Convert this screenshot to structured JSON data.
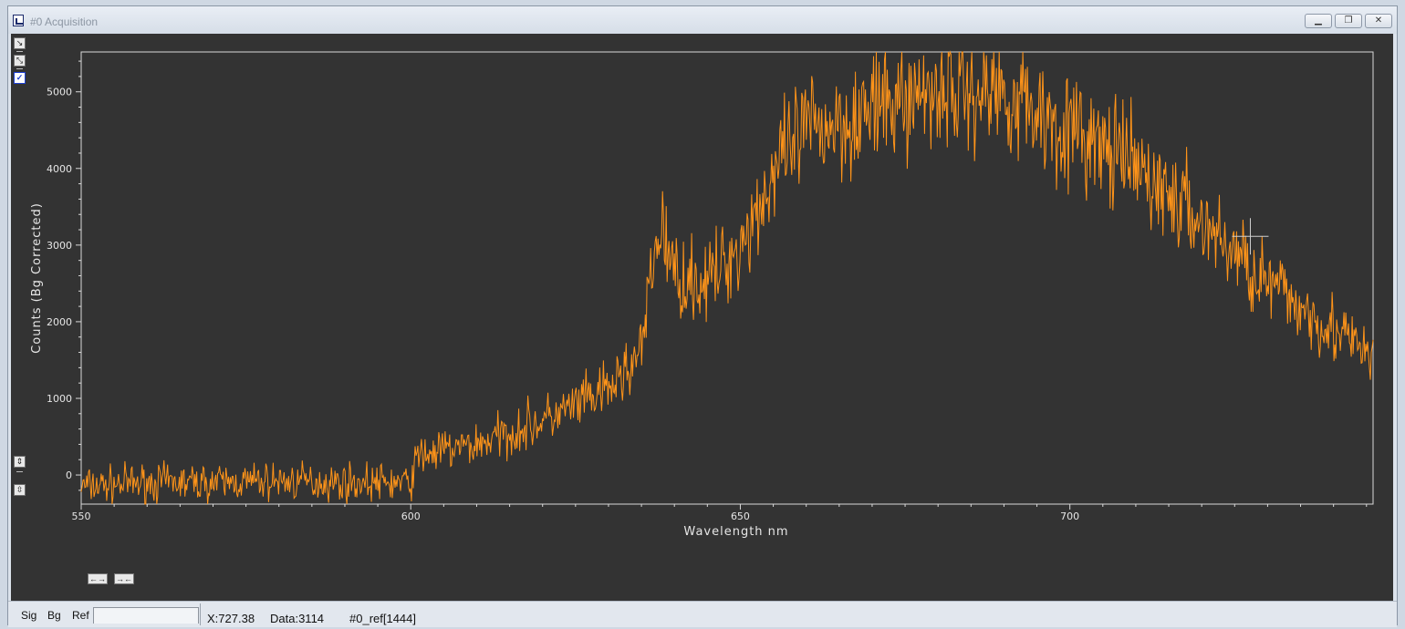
{
  "window": {
    "title": "#0  Acquisition",
    "min_icon": "minimize-icon",
    "restore_icon": "restore-icon",
    "close_icon": "close-icon"
  },
  "left_tools": {
    "icons": [
      "scale-icon",
      "zoom-fit-icon",
      "checkbox-icon"
    ],
    "checked": true
  },
  "chart_data": {
    "type": "line",
    "xlabel": "Wavelength nm",
    "ylabel": "Counts (Bg Corrected)",
    "xlim": [
      550,
      746
    ],
    "ylim": [
      -380,
      5520
    ],
    "x_ticks": [
      550,
      600,
      650,
      700
    ],
    "y_ticks": [
      0,
      1000,
      2000,
      3000,
      4000,
      5000
    ],
    "background": "#333333",
    "series": [
      {
        "color": "#ff9419",
        "x": [
          550,
          560,
          570,
          580,
          590,
          600,
          601,
          610,
          620,
          630,
          635,
          637,
          638,
          640,
          645,
          650,
          655,
          660,
          670,
          680,
          690,
          700,
          710,
          720,
          730,
          740,
          746
        ],
        "y": [
          -150,
          -100,
          -100,
          -80,
          -100,
          -100,
          250,
          400,
          700,
          1100,
          1600,
          2900,
          3250,
          2600,
          2500,
          3000,
          3900,
          4500,
          4750,
          5050,
          5000,
          4500,
          4000,
          3300,
          2500,
          1900,
          1500
        ]
      }
    ],
    "cursor": {
      "x": 727.38,
      "y": 3114
    }
  },
  "status": {
    "tabs": [
      "Sig",
      "Bg",
      "Ref"
    ],
    "x_readout": "X:727.38",
    "data_readout": "Data:3114",
    "ref_readout": "#0_ref[1444]"
  }
}
